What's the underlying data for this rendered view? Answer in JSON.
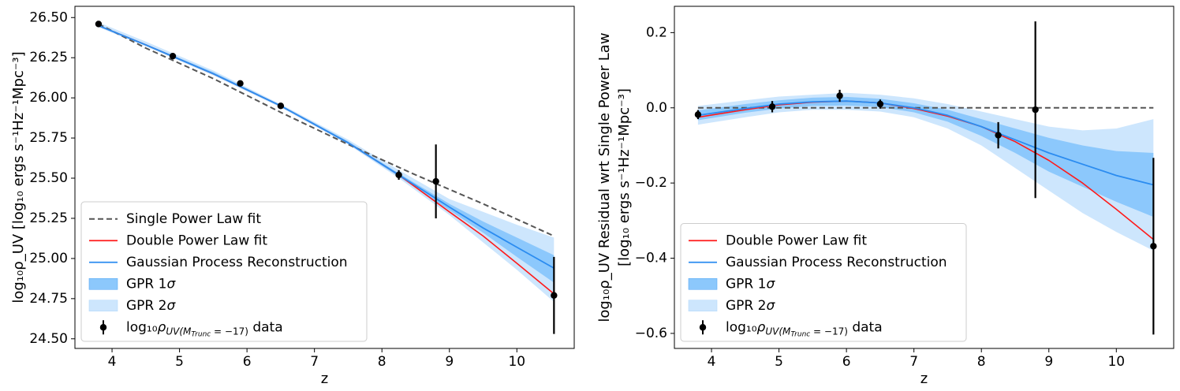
{
  "chart_data": [
    {
      "type": "line",
      "panel": "left",
      "xlabel": "z",
      "ylabel": "log₁₀ρ_UV [log₁₀ ergs s⁻¹Hz⁻¹Mpc⁻³]",
      "xlim": [
        3.45,
        10.85
      ],
      "ylim": [
        24.44,
        26.57
      ],
      "xticks": [
        4,
        5,
        6,
        7,
        8,
        9,
        10
      ],
      "yticks": [
        24.5,
        24.75,
        25.0,
        25.25,
        25.5,
        25.75,
        26.0,
        26.25,
        26.5
      ],
      "ytick_labels": [
        "24.50",
        "24.75",
        "25.00",
        "25.25",
        "25.50",
        "25.75",
        "26.00",
        "26.25",
        "26.50"
      ],
      "legend": [
        "Single Power Law fit",
        "Double Power Law fit",
        "Gaussian Process Reconstruction",
        "GPR 1σ",
        "GPR 2σ",
        "log₁₀ρ_UV(M_Trunc=−17) data"
      ],
      "legend_position": "lower-left",
      "series": [
        {
          "name": "Single Power Law fit",
          "x": [
            3.8,
            4.5,
            5.5,
            6.5,
            7.5,
            8.5,
            9.5,
            10.55
          ],
          "y": [
            26.46,
            26.31,
            26.12,
            25.91,
            25.71,
            25.52,
            25.34,
            25.14
          ]
        },
        {
          "name": "Double Power Law fit",
          "x": [
            3.8,
            4.5,
            5.5,
            6.5,
            7.5,
            8.25,
            9.0,
            9.5,
            10.0,
            10.55
          ],
          "y": [
            26.45,
            26.33,
            26.15,
            25.95,
            25.72,
            25.52,
            25.29,
            25.14,
            24.97,
            24.78
          ]
        },
        {
          "name": "Gaussian Process Reconstruction",
          "x": [
            3.8,
            4.5,
            5.5,
            6.5,
            7.5,
            8.25,
            9.0,
            9.5,
            10.0,
            10.55
          ],
          "y": [
            26.45,
            26.33,
            26.15,
            25.95,
            25.72,
            25.52,
            25.32,
            25.19,
            25.07,
            24.94
          ]
        }
      ],
      "bands": [
        {
          "name": "GPR 2σ",
          "x": [
            3.8,
            4.5,
            5.5,
            6.5,
            7.5,
            8.25,
            9.0,
            9.5,
            10.0,
            10.55
          ],
          "lower": [
            26.44,
            26.32,
            26.14,
            25.94,
            25.71,
            25.5,
            25.27,
            25.1,
            24.93,
            24.73
          ],
          "upper": [
            26.47,
            26.35,
            26.17,
            25.96,
            25.74,
            25.55,
            25.37,
            25.29,
            25.21,
            25.13
          ]
        },
        {
          "name": "GPR 1σ",
          "x": [
            3.8,
            4.5,
            5.5,
            6.5,
            7.5,
            8.25,
            9.0,
            9.5,
            10.0,
            10.55
          ],
          "lower": [
            26.445,
            26.325,
            26.145,
            25.945,
            25.715,
            25.51,
            25.3,
            25.16,
            25.01,
            24.85
          ],
          "upper": [
            26.455,
            26.335,
            26.16,
            25.955,
            25.73,
            25.53,
            25.34,
            25.23,
            25.13,
            25.02
          ]
        }
      ],
      "points": {
        "name": "log₁₀ρ_UV(M_Trunc=−17) data",
        "x": [
          3.8,
          4.9,
          5.9,
          6.5,
          8.25,
          8.8,
          10.55
        ],
        "y": [
          26.46,
          26.26,
          26.09,
          25.95,
          25.52,
          25.48,
          24.77
        ],
        "err": [
          0.01,
          0.01,
          0.01,
          0.01,
          0.03,
          0.23,
          0.24
        ]
      }
    },
    {
      "type": "line",
      "panel": "right",
      "xlabel": "z",
      "ylabel": "log₁₀ρ_UV Residual wrt Single Power Law",
      "ylabel2": "[log₁₀ ergs s⁻¹Hz⁻¹Mpc⁻³]",
      "xlim": [
        3.45,
        10.85
      ],
      "ylim": [
        -0.64,
        0.27
      ],
      "xticks": [
        4,
        5,
        6,
        7,
        8,
        9,
        10
      ],
      "yticks": [
        -0.6,
        -0.4,
        -0.2,
        0.0,
        0.2
      ],
      "ytick_labels": [
        "−0.6",
        "−0.4",
        "−0.2",
        "0.0",
        "0.2"
      ],
      "legend": [
        "Double Power Law fit",
        "Gaussian Process Reconstruction",
        "GPR 1σ",
        "GPR 2σ",
        "log₁₀ρ_UV(M_Trunc=−17) data"
      ],
      "legend_position": "lower-left",
      "series": [
        {
          "name": "Single Power Law fit",
          "x": [
            3.8,
            10.55
          ],
          "y": [
            0.0,
            0.0
          ]
        },
        {
          "name": "Double Power Law fit",
          "x": [
            3.8,
            4.5,
            5.0,
            5.5,
            6.0,
            6.5,
            7.0,
            7.5,
            8.0,
            8.5,
            9.0,
            9.5,
            10.0,
            10.55
          ],
          "y": [
            -0.025,
            -0.005,
            0.008,
            0.015,
            0.018,
            0.013,
            -0.002,
            -0.022,
            -0.05,
            -0.09,
            -0.14,
            -0.2,
            -0.27,
            -0.35
          ]
        },
        {
          "name": "Gaussian Process Reconstruction",
          "x": [
            3.8,
            4.5,
            5.0,
            5.5,
            6.0,
            6.5,
            7.0,
            7.5,
            8.0,
            8.5,
            9.0,
            9.5,
            10.0,
            10.55
          ],
          "y": [
            -0.02,
            -0.002,
            0.01,
            0.016,
            0.018,
            0.013,
            0.0,
            -0.02,
            -0.05,
            -0.085,
            -0.12,
            -0.15,
            -0.18,
            -0.205
          ]
        }
      ],
      "bands": [
        {
          "name": "GPR 2σ",
          "x": [
            3.8,
            4.5,
            5.0,
            5.5,
            6.0,
            6.5,
            7.0,
            7.5,
            8.0,
            8.5,
            9.0,
            9.5,
            10.0,
            10.55
          ],
          "lower": [
            -0.045,
            -0.025,
            -0.012,
            -0.005,
            -0.005,
            -0.01,
            -0.025,
            -0.055,
            -0.1,
            -0.16,
            -0.22,
            -0.28,
            -0.33,
            -0.38
          ],
          "upper": [
            0.005,
            0.02,
            0.03,
            0.035,
            0.04,
            0.035,
            0.025,
            0.01,
            -0.01,
            -0.03,
            -0.05,
            -0.06,
            -0.055,
            -0.03
          ]
        },
        {
          "name": "GPR 1σ",
          "x": [
            3.8,
            4.5,
            5.0,
            5.5,
            6.0,
            6.5,
            7.0,
            7.5,
            8.0,
            8.5,
            9.0,
            9.5,
            10.0,
            10.55
          ],
          "lower": [
            -0.033,
            -0.013,
            -0.002,
            0.005,
            0.006,
            0.002,
            -0.012,
            -0.037,
            -0.075,
            -0.12,
            -0.17,
            -0.21,
            -0.25,
            -0.29
          ],
          "upper": [
            -0.007,
            0.01,
            0.02,
            0.027,
            0.029,
            0.024,
            0.012,
            -0.005,
            -0.03,
            -0.055,
            -0.08,
            -0.1,
            -0.115,
            -0.12
          ]
        }
      ],
      "points": {
        "name": "log₁₀ρ_UV(M_Trunc=−17) data",
        "x": [
          3.8,
          4.9,
          5.9,
          6.5,
          8.25,
          8.8,
          10.55
        ],
        "y": [
          -0.018,
          0.003,
          0.032,
          0.01,
          -0.073,
          -0.005,
          -0.368
        ],
        "err": [
          0.012,
          0.015,
          0.016,
          0.012,
          0.035,
          0.235,
          0.235
        ]
      }
    }
  ],
  "colors": {
    "single_power_law": "#555555",
    "double_power_law": "#ff1a1a",
    "gpr_line": "#2b8cf0",
    "gpr_1sigma": "#8cc8fc",
    "gpr_2sigma": "#cde6fd",
    "data_points": "#000000"
  }
}
